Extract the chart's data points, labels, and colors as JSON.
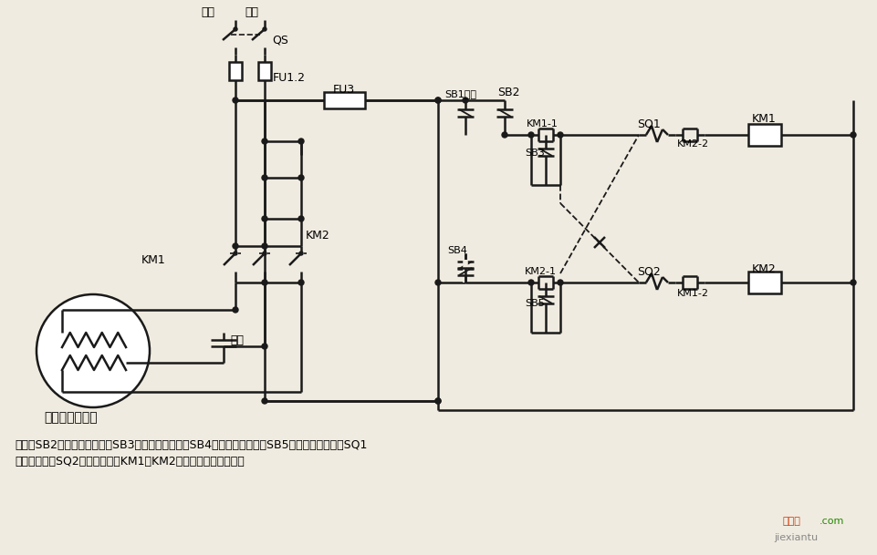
{
  "bg_color": "#f0ebe0",
  "line_color": "#1a1a1a",
  "fig_w": 9.62,
  "fig_h": 6.09,
  "dpi": 100,
  "label_huoxian": "火线",
  "label_lingxian": "零线",
  "label_QS": "QS",
  "label_FU12": "FU1.2",
  "label_FU3": "FU3",
  "label_SB1": "SB1停止",
  "label_SB2": "SB2",
  "label_KM11": "KM1-1",
  "label_SB3": "SB3",
  "label_SB4": "SB4",
  "label_KM21": "KM2-1",
  "label_SB5": "SB5",
  "label_SQ1": "SQ1",
  "label_KM1_coil": "KM1",
  "label_KM22": "KM2-2",
  "label_SQ2": "SQ2",
  "label_KM2_coil": "KM2",
  "label_KM12": "KM1-2",
  "label_motor": "单相电容电动机",
  "label_cap": "电容",
  "label_KM1_main": "KM1",
  "label_KM2_main": "KM2",
  "note_line1": "说明：SB2为上升启动按鈕，SB3为上升点动按鈕，SB4为下降启动按鈕，SB5为下降点动按鈕；SQ1",
  "note_line2": "为最高限位，SQ2为最低限位。KM1、KM2可用中间继电器代替。",
  "watermark1": "接线图",
  "watermark2": ".com",
  "watermark3": "jiexiantu"
}
